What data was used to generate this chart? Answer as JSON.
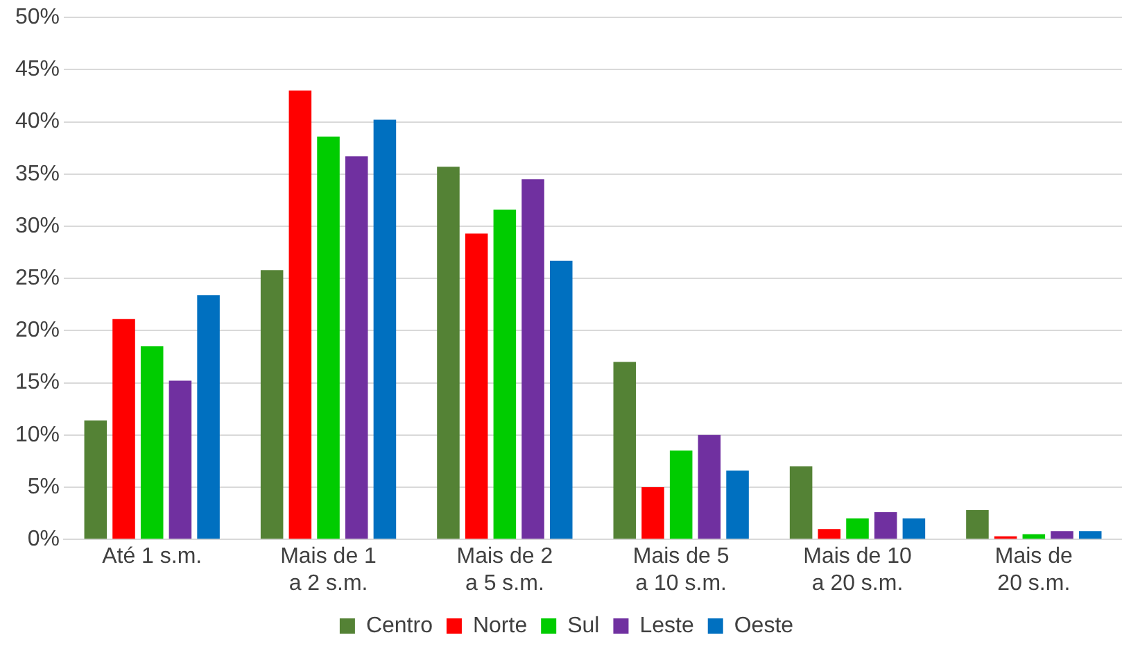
{
  "chart_data": {
    "type": "bar",
    "categories": [
      "Até 1 s.m.",
      "Mais de 1\na 2 s.m.",
      "Mais de 2\na 5 s.m.",
      "Mais de 5\na 10 s.m.",
      "Mais de 10\na 20 s.m.",
      "Mais de\n20 s.m."
    ],
    "series": [
      {
        "name": "Centro",
        "color": "#548235",
        "values": [
          11.4,
          25.8,
          35.7,
          17.0,
          7.0,
          2.8
        ]
      },
      {
        "name": "Norte",
        "color": "#ff0000",
        "values": [
          21.1,
          43.0,
          29.3,
          5.0,
          1.0,
          0.3
        ]
      },
      {
        "name": "Sul",
        "color": "#00cc00",
        "values": [
          18.5,
          38.6,
          31.6,
          8.5,
          2.0,
          0.5
        ]
      },
      {
        "name": "Leste",
        "color": "#7030a0",
        "values": [
          15.2,
          36.7,
          34.5,
          10.0,
          2.6,
          0.8
        ]
      },
      {
        "name": "Oeste",
        "color": "#0070c0",
        "values": [
          23.4,
          40.2,
          26.7,
          6.6,
          2.0,
          0.8
        ]
      }
    ],
    "ylim": [
      0,
      50
    ],
    "yticks": [
      {
        "value": 0,
        "label": "0%"
      },
      {
        "value": 5,
        "label": "5%"
      },
      {
        "value": 10,
        "label": "10%"
      },
      {
        "value": 15,
        "label": "15%"
      },
      {
        "value": 20,
        "label": "20%"
      },
      {
        "value": 25,
        "label": "25%"
      },
      {
        "value": 30,
        "label": "30%"
      },
      {
        "value": 35,
        "label": "35%"
      },
      {
        "value": 40,
        "label": "40%"
      },
      {
        "value": 45,
        "label": "45%"
      },
      {
        "value": 50,
        "label": "50%"
      }
    ],
    "grid": "y",
    "legend": "bottom"
  }
}
